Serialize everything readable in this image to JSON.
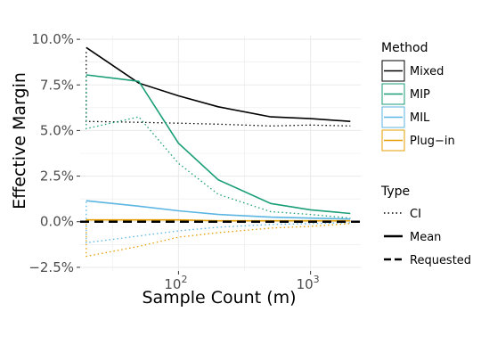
{
  "chart_data": {
    "type": "line",
    "xlabel": "Sample Count (m)",
    "ylabel": "Effective Margin",
    "x_scale": "log10",
    "xlim": [
      18,
      2400
    ],
    "ylim": [
      -2.7,
      10.2
    ],
    "x_ticks": [
      100,
      1000
    ],
    "x_tick_labels": [
      {
        "base": "10",
        "exp": "2"
      },
      {
        "base": "10",
        "exp": "3"
      }
    ],
    "y_ticks": [
      -2.5,
      0,
      2.5,
      5,
      7.5,
      10
    ],
    "y_tick_labels": [
      "−2.5%",
      "0.0%",
      "2.5%",
      "5.0%",
      "7.5%",
      "10.0%"
    ],
    "grid": true,
    "legend_placement": "right",
    "colors": {
      "Mixed": "#000000",
      "MIP": "#1a9e77",
      "MIL": "#5bb5e2",
      "Plug-in": "#e69f00"
    },
    "legend": {
      "method_title": "Method",
      "methods": [
        "Mixed",
        "MIP",
        "MIL",
        "Plug−in"
      ],
      "type_title": "Type",
      "types": [
        "CI",
        "Mean",
        "Requested"
      ]
    },
    "requested": 0,
    "x": [
      20,
      50,
      100,
      200,
      500,
      1000,
      2000
    ],
    "series": [
      {
        "method": "Mixed",
        "kind": "Mean",
        "values": [
          9.55,
          7.6,
          6.9,
          6.3,
          5.75,
          5.65,
          5.5
        ]
      },
      {
        "method": "Mixed",
        "kind": "CI upper",
        "x": [
          20,
          20,
          50,
          100,
          200,
          500,
          1000,
          2000
        ],
        "values": [
          9.3,
          5.5,
          5.45,
          5.4,
          5.35,
          5.25,
          5.3,
          5.25
        ]
      },
      {
        "method": "MIP",
        "kind": "Mean",
        "values": [
          8.05,
          7.7,
          4.3,
          2.3,
          1.0,
          0.65,
          0.45
        ]
      },
      {
        "method": "MIP",
        "kind": "CI lower",
        "x": [
          20,
          20,
          50,
          100,
          200,
          500,
          1000,
          2000
        ],
        "values": [
          8.0,
          5.1,
          5.75,
          3.2,
          1.5,
          0.55,
          0.4,
          0.2
        ]
      },
      {
        "method": "MIL",
        "kind": "Mean",
        "values": [
          1.15,
          0.85,
          0.6,
          0.4,
          0.25,
          0.2,
          0.15
        ]
      },
      {
        "method": "MIL",
        "kind": "CI lower",
        "x": [
          20,
          20,
          100,
          200,
          500,
          1000,
          2000
        ],
        "values": [
          1.1,
          -1.15,
          -0.5,
          -0.3,
          -0.15,
          -0.1,
          -0.05
        ]
      },
      {
        "method": "Plug-in",
        "kind": "Mean",
        "values": [
          0.1,
          0.1,
          0.1,
          0.05,
          0.05,
          0.05,
          0.05
        ]
      },
      {
        "method": "Plug-in",
        "kind": "CI lower",
        "x": [
          20,
          20,
          50,
          100,
          200,
          500,
          1000,
          2000
        ],
        "values": [
          0.1,
          -1.9,
          -1.35,
          -0.85,
          -0.6,
          -0.35,
          -0.25,
          -0.1
        ]
      }
    ]
  }
}
